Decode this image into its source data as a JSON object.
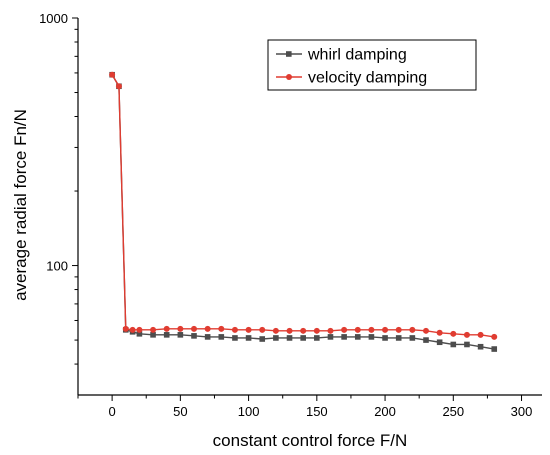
{
  "chart_data": {
    "type": "line",
    "xlabel": "constant control force F/N",
    "ylabel": "average radial force Fn/N",
    "xlim": [
      -25,
      315
    ],
    "ylim": [
      30,
      1000
    ],
    "yscale": "log",
    "x_ticks": [
      0,
      50,
      100,
      150,
      200,
      250,
      300
    ],
    "y_ticks_labeled": [
      100,
      1000
    ],
    "legend_position": "top-right",
    "grid": false,
    "x": [
      0,
      5,
      10,
      15,
      20,
      30,
      40,
      50,
      60,
      70,
      80,
      90,
      100,
      110,
      120,
      130,
      140,
      150,
      160,
      170,
      180,
      190,
      200,
      210,
      220,
      230,
      240,
      250,
      260,
      270,
      280
    ],
    "series": [
      {
        "name": "whirl damping",
        "color": "#4d4d4d",
        "marker": "square",
        "values": [
          590,
          530,
          55,
          54,
          53,
          52.5,
          52.5,
          52.5,
          52,
          51.5,
          51.5,
          51,
          51,
          50.5,
          51,
          51,
          51,
          51,
          51.5,
          51.5,
          51.5,
          51.5,
          51,
          51,
          51,
          50,
          49,
          48,
          48,
          47,
          46
        ]
      },
      {
        "name": "velocity damping",
        "color": "#e03c31",
        "marker": "circle",
        "values": [
          590,
          530,
          55.5,
          55,
          55,
          55,
          55.5,
          55.5,
          55.5,
          55.5,
          55.5,
          55,
          55,
          55,
          54.5,
          54.5,
          54.5,
          54.5,
          54.5,
          55,
          55,
          55,
          55,
          55,
          55,
          54.5,
          53.5,
          53,
          52.5,
          52.5,
          51.5
        ]
      }
    ]
  }
}
